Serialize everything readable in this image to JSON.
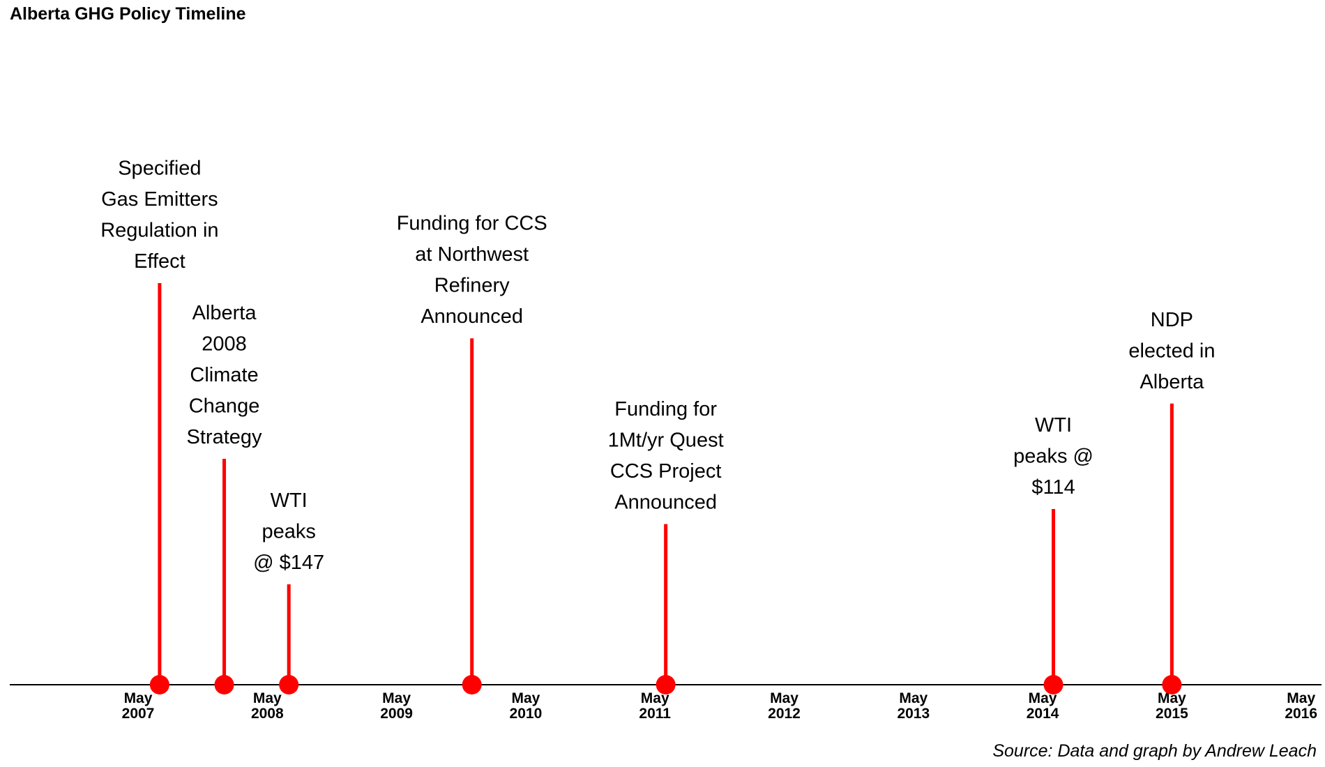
{
  "title": "Alberta GHG Policy Timeline",
  "source": "Source: Data and graph by Andrew Leach",
  "chart_data": {
    "type": "timeline",
    "title": "Alberta GHG Policy Timeline",
    "x_axis": {
      "tick_labels": [
        {
          "month": "May",
          "year": "2007"
        },
        {
          "month": "May",
          "year": "2008"
        },
        {
          "month": "May",
          "year": "2009"
        },
        {
          "month": "May",
          "year": "2010"
        },
        {
          "month": "May",
          "year": "2011"
        },
        {
          "month": "May",
          "year": "2012"
        },
        {
          "month": "May",
          "year": "2013"
        },
        {
          "month": "May",
          "year": "2014"
        },
        {
          "month": "May",
          "year": "2015"
        },
        {
          "month": "May",
          "year": "2016"
        }
      ],
      "range": [
        "2006-08",
        "2016-06"
      ]
    },
    "grid": false,
    "color": "#ff0000",
    "events": [
      {
        "date": "2007-07",
        "label_lines": [
          "Specified",
          "Gas Emitters",
          "Regulation in",
          "Effect"
        ],
        "height": 0.8
      },
      {
        "date": "2008-01",
        "label_lines": [
          "Alberta",
          "2008",
          "Climate",
          "Change",
          "Strategy"
        ],
        "height": 0.45
      },
      {
        "date": "2008-07",
        "label_lines": [
          "WTI",
          "peaks",
          "@ $147"
        ],
        "height": 0.2
      },
      {
        "date": "2009-12",
        "label_lines": [
          "Funding for CCS",
          "at Northwest",
          "Refinery",
          "Announced"
        ],
        "height": 0.69
      },
      {
        "date": "2011-06",
        "label_lines": [
          "Funding for",
          "1Mt/yr Quest",
          "CCS Project",
          "Announced"
        ],
        "height": 0.32
      },
      {
        "date": "2014-06",
        "label_lines": [
          "WTI",
          "peaks @",
          "$114"
        ],
        "height": 0.35
      },
      {
        "date": "2015-05",
        "label_lines": [
          "NDP",
          "elected in",
          "Alberta"
        ],
        "height": 0.56
      }
    ]
  }
}
